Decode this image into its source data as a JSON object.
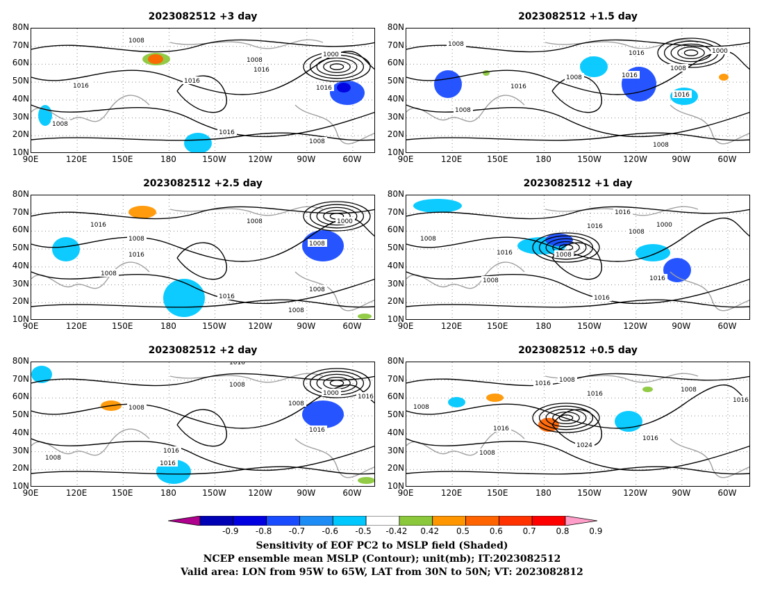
{
  "panels": [
    {
      "title": "2023082512 +3 day"
    },
    {
      "title": "2023082512 +1.5 day"
    },
    {
      "title": "2023082512 +2.5 day"
    },
    {
      "title": "2023082512 +1 day"
    },
    {
      "title": "2023082512 +2 day"
    },
    {
      "title": "2023082512 +0.5 day"
    }
  ],
  "axes": {
    "y_ticks": [
      "80N",
      "70N",
      "60N",
      "50N",
      "40N",
      "30N",
      "20N",
      "10N"
    ],
    "x_ticks": [
      "90E",
      "120E",
      "150E",
      "180",
      "150W",
      "120W",
      "90W",
      "60W"
    ]
  },
  "contour_labels": [
    "1000",
    "1008",
    "1016",
    "1024"
  ],
  "colorbar": {
    "labels": [
      "-0.9",
      "-0.8",
      "-0.7",
      "-0.6",
      "-0.5",
      "-0.42",
      "0.42",
      "0.5",
      "0.6",
      "0.7",
      "0.8",
      "0.9"
    ],
    "colors": [
      "#b0008e",
      "#0000b4",
      "#0000e0",
      "#1a4cff",
      "#1e8cf5",
      "#00c8ff",
      "#ffffff",
      "#8cc83c",
      "#ff9600",
      "#ff6400",
      "#ff3200",
      "#ff0000",
      "#ff9ec8"
    ]
  },
  "footer": {
    "line1": "Sensitivity of EOF PC2 to MSLP field (Shaded)",
    "line2": "NCEP ensemble mean MSLP (Contour); unit(mb); IT:2023082512",
    "line3": "Valid area: LON from 95W to 65W, LAT from 30N to 50N; VT: 2023082812"
  }
}
